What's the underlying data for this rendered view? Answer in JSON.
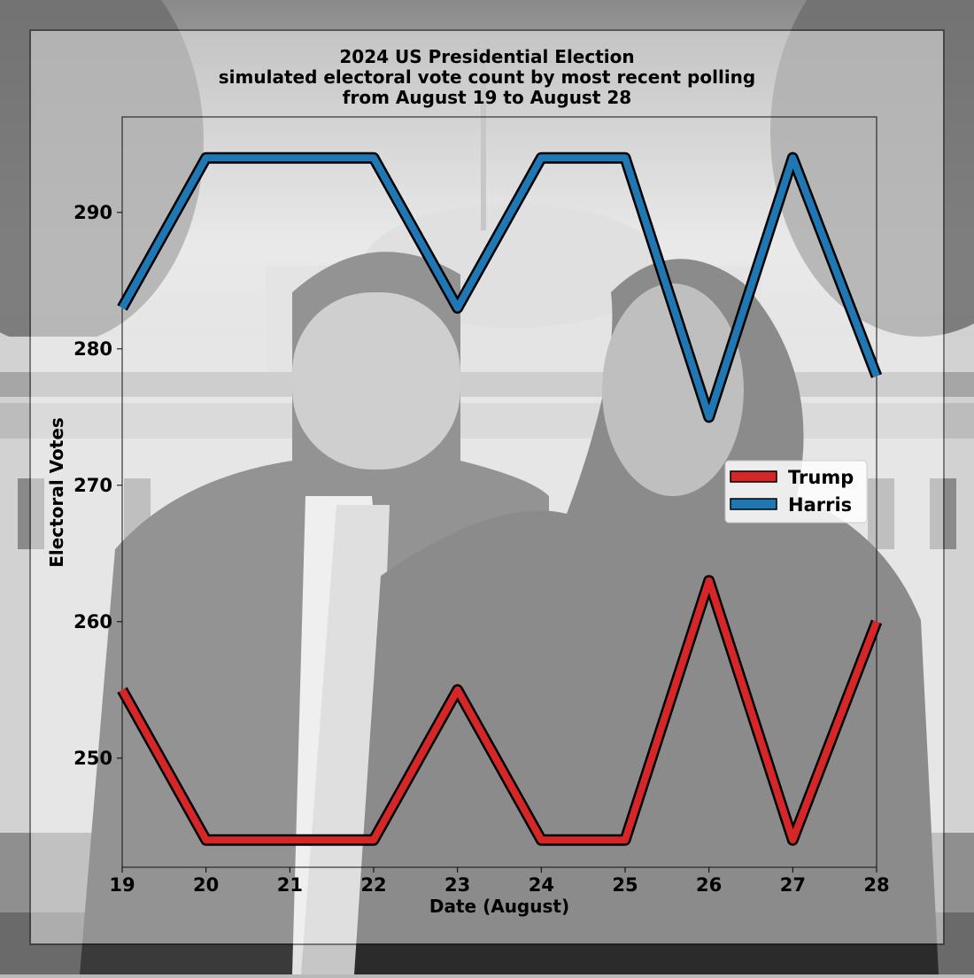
{
  "figure": {
    "background_description_colors": {
      "photo_gray_light": "#d9d9d9",
      "photo_gray_mid": "#9a9a9a",
      "photo_gray_dark": "#2a2a2a",
      "overlay": "#ffffff"
    }
  },
  "chart_data": {
    "type": "line",
    "title_lines": [
      "2024 US Presidential Election",
      "simulated electoral vote count by most recent polling",
      "from August 19 to August 28"
    ],
    "xlabel": "Date (August)",
    "ylabel": "Electoral Votes",
    "x": [
      19,
      20,
      21,
      22,
      23,
      24,
      25,
      26,
      27,
      28
    ],
    "xticks": [
      "19",
      "20",
      "21",
      "22",
      "23",
      "24",
      "25",
      "26",
      "27",
      "28"
    ],
    "yticks": [
      "250",
      "260",
      "270",
      "280",
      "290"
    ],
    "xlim": [
      19,
      28
    ],
    "ylim": [
      242,
      297
    ],
    "grid": false,
    "legend_position": "center-right",
    "series": [
      {
        "name": "Trump",
        "color": "#d62728",
        "values": [
          255,
          244,
          244,
          244,
          255,
          244,
          244,
          263,
          244,
          260
        ]
      },
      {
        "name": "Harris",
        "color": "#1f77b4",
        "values": [
          283,
          294,
          294,
          294,
          283,
          294,
          294,
          275,
          294,
          278
        ]
      }
    ]
  }
}
